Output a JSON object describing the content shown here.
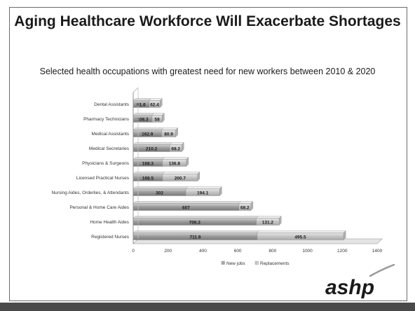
{
  "slide": {
    "title": "Aging Healthcare Workforce Will Exacerbate Shortages",
    "subtitle": "Selected health occupations with greatest need for new workers between 2010 & 2020",
    "logo_text": "ashp"
  },
  "chart_data": {
    "type": "bar",
    "orientation": "horizontal",
    "stacked": true,
    "title": "",
    "xlabel": "",
    "ylabel": "",
    "xlim": [
      0,
      1400
    ],
    "xticks": [
      0,
      200,
      400,
      600,
      800,
      1000,
      1200,
      1400
    ],
    "categories": [
      "Registered Nurses",
      "Home Health Aides",
      "Personal & Home Care Aides",
      "Nursing Aides, Orderlies, & Attendants",
      "Licensed Practical Nurses",
      "Physicians & Surgeons",
      "Medical Secretaries",
      "Medical Assistants",
      "Pharmacy Technicians",
      "Dental Assistants"
    ],
    "series": [
      {
        "name": "New jobs",
        "values": [
          711.9,
          706.3,
          607,
          302,
          168.5,
          168.3,
          210.2,
          162.9,
          108.3,
          91.6
        ],
        "labels": [
          "711.9",
          "706.3",
          "607",
          "302",
          "168.5",
          "168.3",
          "210.2",
          "162.9",
          "108.3",
          "91.6"
        ]
      },
      {
        "name": "Replacements",
        "values": [
          495.5,
          131.2,
          68.2,
          194.1,
          200.7,
          136.8,
          68.2,
          80.9,
          58,
          62.4
        ],
        "labels": [
          "495.5",
          "131.2",
          "68.2",
          "194.1",
          "200.7",
          "136.8",
          "68.2",
          "80.9",
          "58",
          "62.4"
        ]
      }
    ],
    "legend": {
      "position": "bottom",
      "items": [
        "New jobs",
        "Replacements"
      ]
    },
    "grid": false,
    "colors": {
      "new_jobs": "#a6a6a6",
      "replacements": "#c8c8c8"
    }
  }
}
